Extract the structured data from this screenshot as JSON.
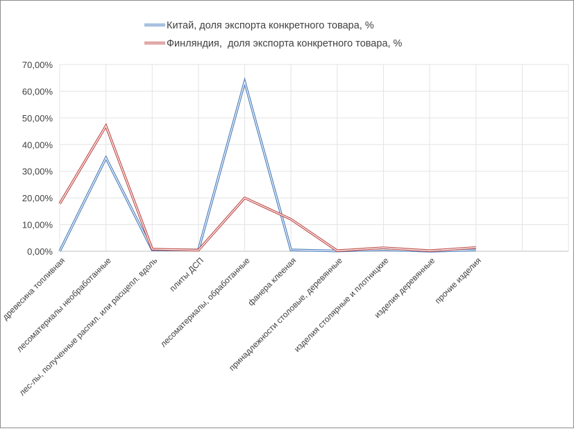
{
  "chart_data": {
    "type": "line",
    "title": "",
    "xlabel": "",
    "ylabel": "",
    "ylim": [
      0,
      70
    ],
    "yticks": [
      "0,00%",
      "10,00%",
      "20,00%",
      "30,00%",
      "40,00%",
      "50,00%",
      "60,00%",
      "70,00%"
    ],
    "y_tick_values": [
      0,
      10,
      20,
      30,
      40,
      50,
      60,
      70
    ],
    "grid": true,
    "legend_position": "top",
    "categories": [
      "древесина топливная",
      "лесоматериалы необработанные",
      "лес-лы, полученные распил. или расщепл. вдоль",
      "плиты ДСП",
      "лесоматериалы, обработанные",
      "фанера клееная",
      "принадлежности столовые, деревянные",
      "изделия столярные и плотницкие",
      "изделия деревянные",
      "прочие изделия"
    ],
    "series": [
      {
        "name": "Китай, доля экспорта конкретного товара, %",
        "color": "#4f81bd",
        "values": [
          0.0,
          35.0,
          0.5,
          0.5,
          63.5,
          0.5,
          0.1,
          0.6,
          0.0,
          0.5
        ]
      },
      {
        "name": "Финляндия,  доля экспорта конкретного товара, %",
        "color": "#c0504d",
        "values": [
          17.8,
          47.0,
          0.8,
          0.4,
          20.0,
          12.0,
          0.2,
          1.3,
          0.2,
          1.4
        ]
      }
    ]
  }
}
